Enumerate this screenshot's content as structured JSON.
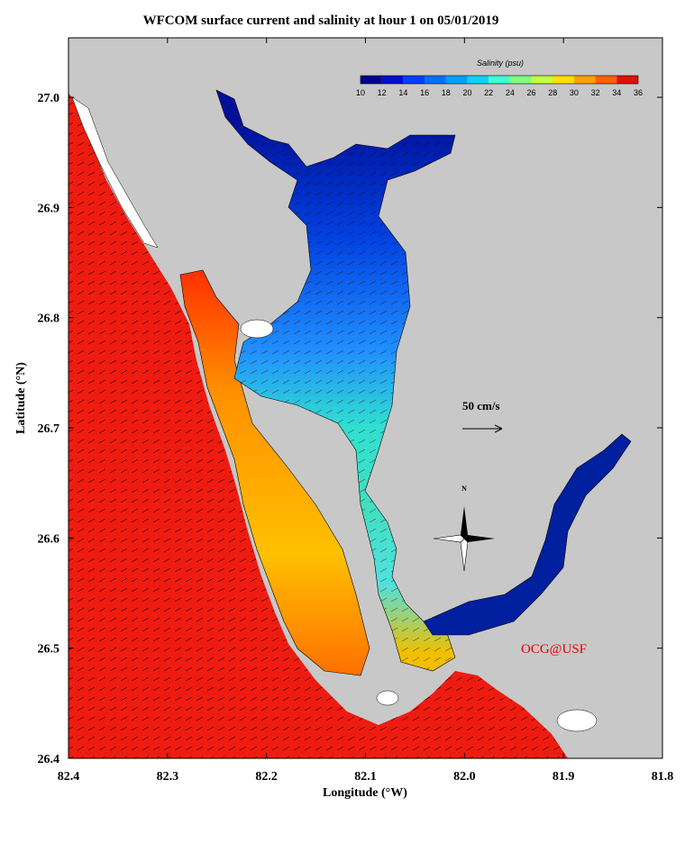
{
  "map": {
    "title": "WFCOM surface current and salinity at hour 1 on 05/01/2019",
    "xlabel": "Longitude (°W)",
    "ylabel": "Latitude (°N)",
    "xlim": [
      82.4,
      81.8
    ],
    "ylim": [
      26.4,
      27.054
    ],
    "xticks": [
      82.4,
      82.3,
      82.2,
      82.1,
      {
        "value": 82,
        "label": "82.0"
      },
      81.9,
      81.8
    ],
    "yticks": [
      26.4,
      26.5,
      26.6,
      26.7,
      26.8,
      26.9,
      {
        "value": 27,
        "label": "27.0"
      }
    ],
    "colorbar": {
      "title": "Salinity (psu)",
      "clim": [
        10,
        36
      ],
      "ticks": [
        10,
        12,
        14,
        16,
        18,
        20,
        22,
        24,
        26,
        28,
        30,
        32,
        34,
        36
      ],
      "colors": [
        "#00008f",
        "#0010d0",
        "#0040ff",
        "#0070ff",
        "#00a0ff",
        "#10d0ff",
        "#40ffd0",
        "#80ff80",
        "#c0ff40",
        "#ffe000",
        "#ffa000",
        "#ff6000",
        "#e01000"
      ]
    },
    "vector_scale_label": "50 cm/s",
    "compass_label": "N",
    "credit": "OCG@USF"
  }
}
